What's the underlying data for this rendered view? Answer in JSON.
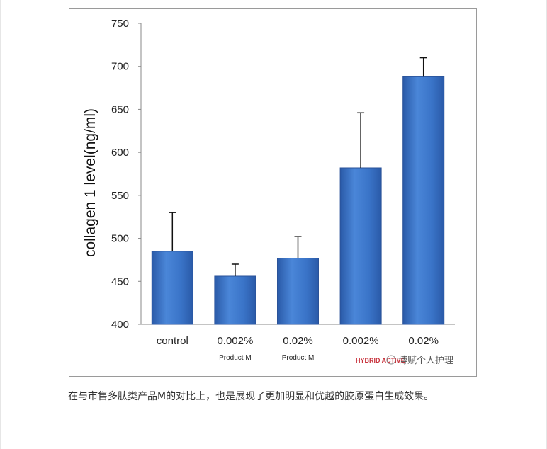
{
  "chart_data": {
    "type": "bar",
    "ylabel": "collagen 1 level(ng/ml)",
    "ylim": [
      400,
      750
    ],
    "yticks": [
      400,
      450,
      500,
      550,
      600,
      650,
      700,
      750
    ],
    "categories": [
      "control",
      "0.002%",
      "0.02%",
      "0.002%",
      "0.02%"
    ],
    "sublabels": [
      "",
      "Product M",
      "Product M",
      "",
      ""
    ],
    "values": [
      485,
      456,
      477,
      582,
      688
    ],
    "errors": [
      45,
      14,
      25,
      64,
      22
    ],
    "bar_color": "#3a74c8",
    "grid": false,
    "legend": "none"
  },
  "watermark": {
    "brand": "HYBRID ACTIVE",
    "account": "博赋个人护理"
  },
  "caption": "在与市售多肽类产品M的对比上，也是展现了更加明显和优越的胶原蛋白生成效果。"
}
